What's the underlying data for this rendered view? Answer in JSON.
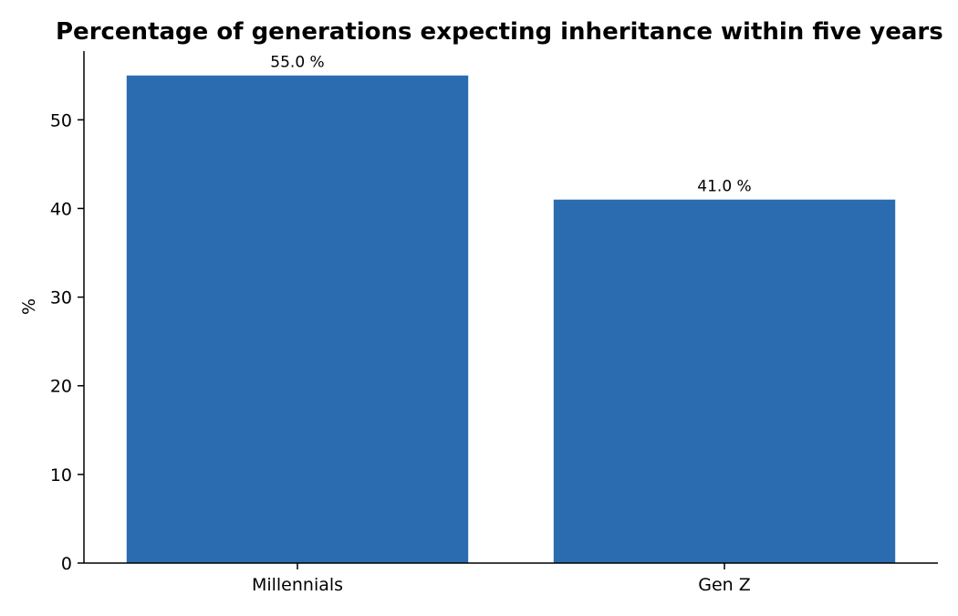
{
  "chart_data": {
    "type": "bar",
    "title": "Percentage of generations expecting inheritance within five years",
    "xlabel": "",
    "ylabel": "%",
    "categories": [
      "Millennials",
      "Gen Z"
    ],
    "values": [
      55.0,
      41.0
    ],
    "data_labels": [
      "55.0 %",
      "41.0 %"
    ],
    "y_ticks": [
      0,
      10,
      20,
      30,
      40,
      50
    ],
    "ylim": [
      0,
      57.75
    ],
    "bar_color": "#2b6cb0",
    "grid": false,
    "legend": "none"
  }
}
